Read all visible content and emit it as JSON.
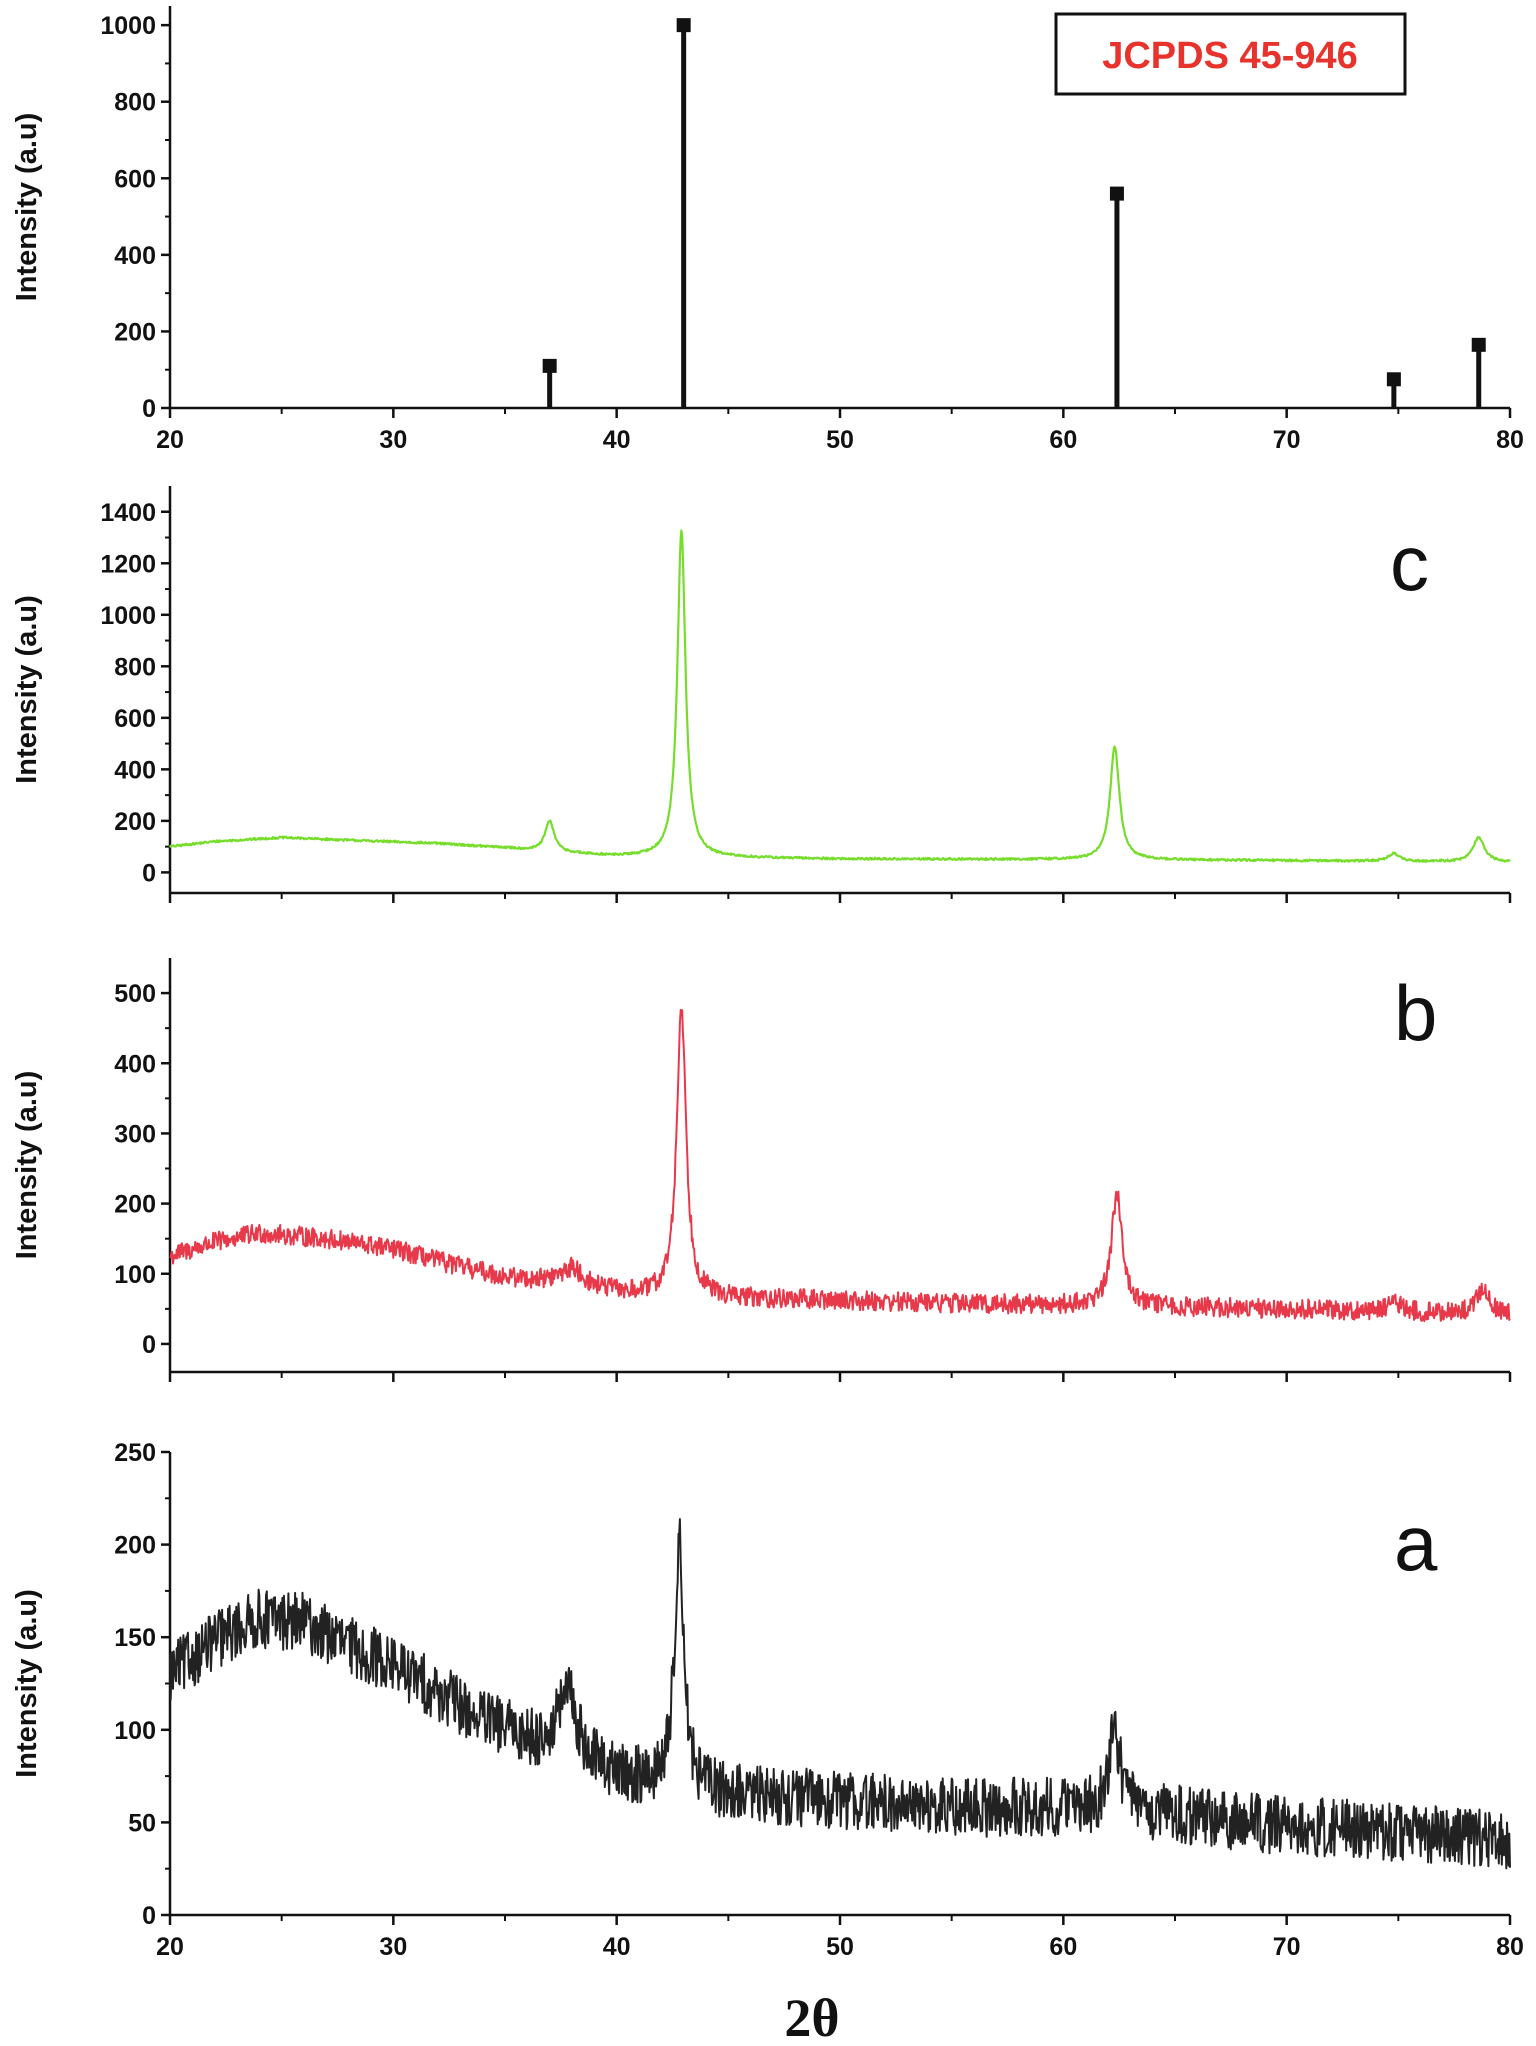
{
  "chart_data": [
    {
      "id": "ref",
      "type": "bar",
      "annotation": "JCPDS 45-946",
      "ylabel": "Intensity (a.u)",
      "xlim": [
        20,
        80
      ],
      "ylim": [
        0,
        1050
      ],
      "xticks": [
        20,
        30,
        40,
        50,
        60,
        70,
        80
      ],
      "yticks": [
        0,
        200,
        400,
        600,
        800,
        1000
      ],
      "color": "#111111",
      "points": [
        {
          "x": 37.0,
          "y": 110
        },
        {
          "x": 43.0,
          "y": 1000
        },
        {
          "x": 62.4,
          "y": 560
        },
        {
          "x": 74.8,
          "y": 75
        },
        {
          "x": 78.6,
          "y": 165
        }
      ]
    },
    {
      "id": "c",
      "type": "line",
      "label": "c",
      "ylabel": "Intensity (a.u)",
      "xlim": [
        20,
        80
      ],
      "ylim": [
        -80,
        1500
      ],
      "xticks": [
        20,
        30,
        40,
        50,
        60,
        70,
        80
      ],
      "yticks": [
        0,
        200,
        400,
        600,
        800,
        1000,
        1200,
        1400
      ],
      "color": "#77dd2c",
      "noise": 4,
      "background": [
        [
          20,
          100
        ],
        [
          22,
          120
        ],
        [
          25,
          135
        ],
        [
          28,
          125
        ],
        [
          32,
          112
        ],
        [
          35,
          95
        ],
        [
          37,
          78
        ],
        [
          40,
          62
        ],
        [
          44,
          58
        ],
        [
          50,
          52
        ],
        [
          60,
          50
        ],
        [
          70,
          46
        ],
        [
          80,
          40
        ]
      ],
      "peaks": [
        [
          37.0,
          120,
          0.25
        ],
        [
          42.9,
          1265,
          0.22
        ],
        [
          62.3,
          440,
          0.25
        ],
        [
          74.8,
          30,
          0.3
        ],
        [
          78.6,
          95,
          0.3
        ]
      ]
    },
    {
      "id": "b",
      "type": "line",
      "label": "b",
      "ylabel": "Intensity (a.u)",
      "xlim": [
        20,
        80
      ],
      "ylim": [
        -40,
        550
      ],
      "xticks": [
        20,
        30,
        40,
        50,
        60,
        70,
        80
      ],
      "yticks": [
        0,
        100,
        200,
        300,
        400,
        500
      ],
      "color": "#e8394a",
      "noise": 14,
      "background": [
        [
          20,
          125
        ],
        [
          22,
          145
        ],
        [
          24,
          158
        ],
        [
          27,
          150
        ],
        [
          30,
          135
        ],
        [
          33,
          110
        ],
        [
          35,
          95
        ],
        [
          37,
          88
        ],
        [
          39,
          78
        ],
        [
          41,
          70
        ],
        [
          45,
          65
        ],
        [
          50,
          62
        ],
        [
          55,
          58
        ],
        [
          60,
          55
        ],
        [
          65,
          52
        ],
        [
          70,
          50
        ],
        [
          75,
          46
        ],
        [
          80,
          40
        ]
      ],
      "peaks": [
        [
          38.0,
          25,
          0.6
        ],
        [
          42.9,
          415,
          0.25
        ],
        [
          62.4,
          160,
          0.3
        ],
        [
          74.8,
          12,
          0.4
        ],
        [
          78.8,
          38,
          0.35
        ]
      ]
    },
    {
      "id": "a",
      "type": "line",
      "label": "a",
      "ylabel": "Intensity (a.u)",
      "xlabel": "2θ",
      "xlim": [
        20,
        80
      ],
      "ylim": [
        0,
        250
      ],
      "xticks": [
        20,
        30,
        40,
        50,
        60,
        70,
        80
      ],
      "yticks": [
        0,
        50,
        100,
        150,
        200,
        250
      ],
      "color": "#222222",
      "noise": 16,
      "background": [
        [
          20,
          130
        ],
        [
          22,
          148
        ],
        [
          24,
          160
        ],
        [
          26,
          158
        ],
        [
          28,
          145
        ],
        [
          30,
          135
        ],
        [
          32,
          120
        ],
        [
          34,
          105
        ],
        [
          36,
          95
        ],
        [
          38,
          85
        ],
        [
          40,
          75
        ],
        [
          42,
          70
        ],
        [
          45,
          65
        ],
        [
          50,
          62
        ],
        [
          55,
          58
        ],
        [
          60,
          58
        ],
        [
          64,
          55
        ],
        [
          70,
          48
        ],
        [
          75,
          45
        ],
        [
          80,
          40
        ]
      ],
      "peaks": [
        [
          37.8,
          35,
          0.5
        ],
        [
          42.8,
          135,
          0.25
        ],
        [
          62.3,
          45,
          0.3
        ]
      ]
    }
  ]
}
